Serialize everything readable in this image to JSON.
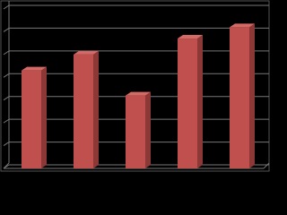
{
  "chart_data": {
    "type": "bar",
    "categories": [
      null,
      null,
      null,
      null,
      null
    ],
    "values": [
      4.3,
      5.0,
      3.2,
      5.7,
      6.2
    ],
    "color": "#c0504d",
    "ylim": [
      0,
      7
    ],
    "yticks": [
      0,
      1,
      2,
      3,
      4,
      5,
      6,
      7
    ],
    "grid": true
  }
}
